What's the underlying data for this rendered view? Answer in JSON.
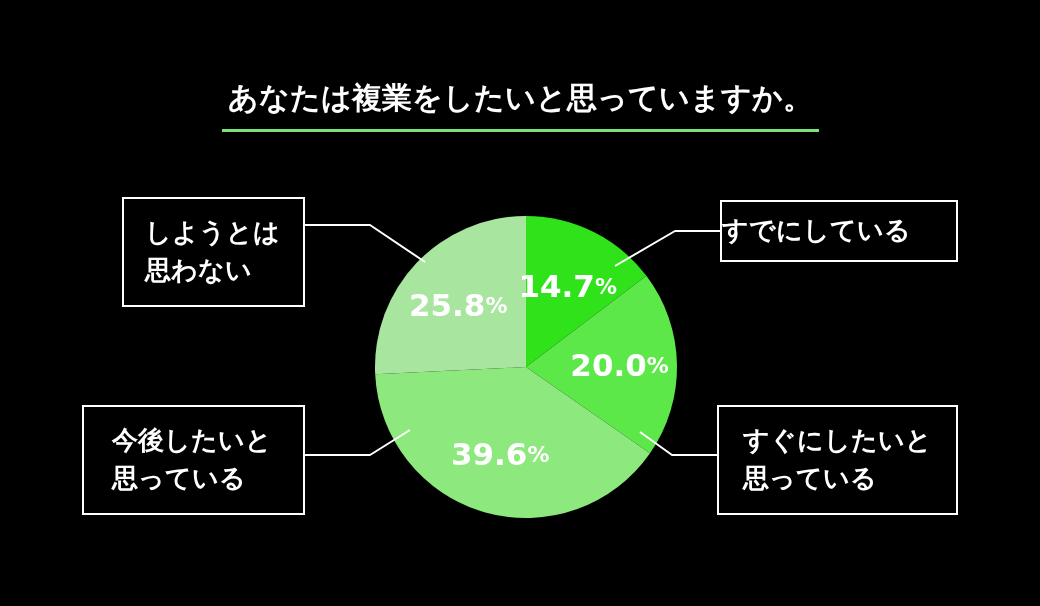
{
  "chart_data": {
    "type": "pie",
    "title": "あなたは複業をしたいと思っていますか。",
    "categories": [
      "すでにしている",
      "すぐにしたいと思っている",
      "今後したいと思っている",
      "しようとは思わない"
    ],
    "values": [
      14.7,
      20.0,
      39.6,
      25.8
    ],
    "colors": [
      "#2fe21a",
      "#5de84a",
      "#8de97d",
      "#a8e6a0"
    ],
    "value_labels": [
      "14.7%",
      "20.0%",
      "39.6%",
      "25.8%"
    ]
  }
}
